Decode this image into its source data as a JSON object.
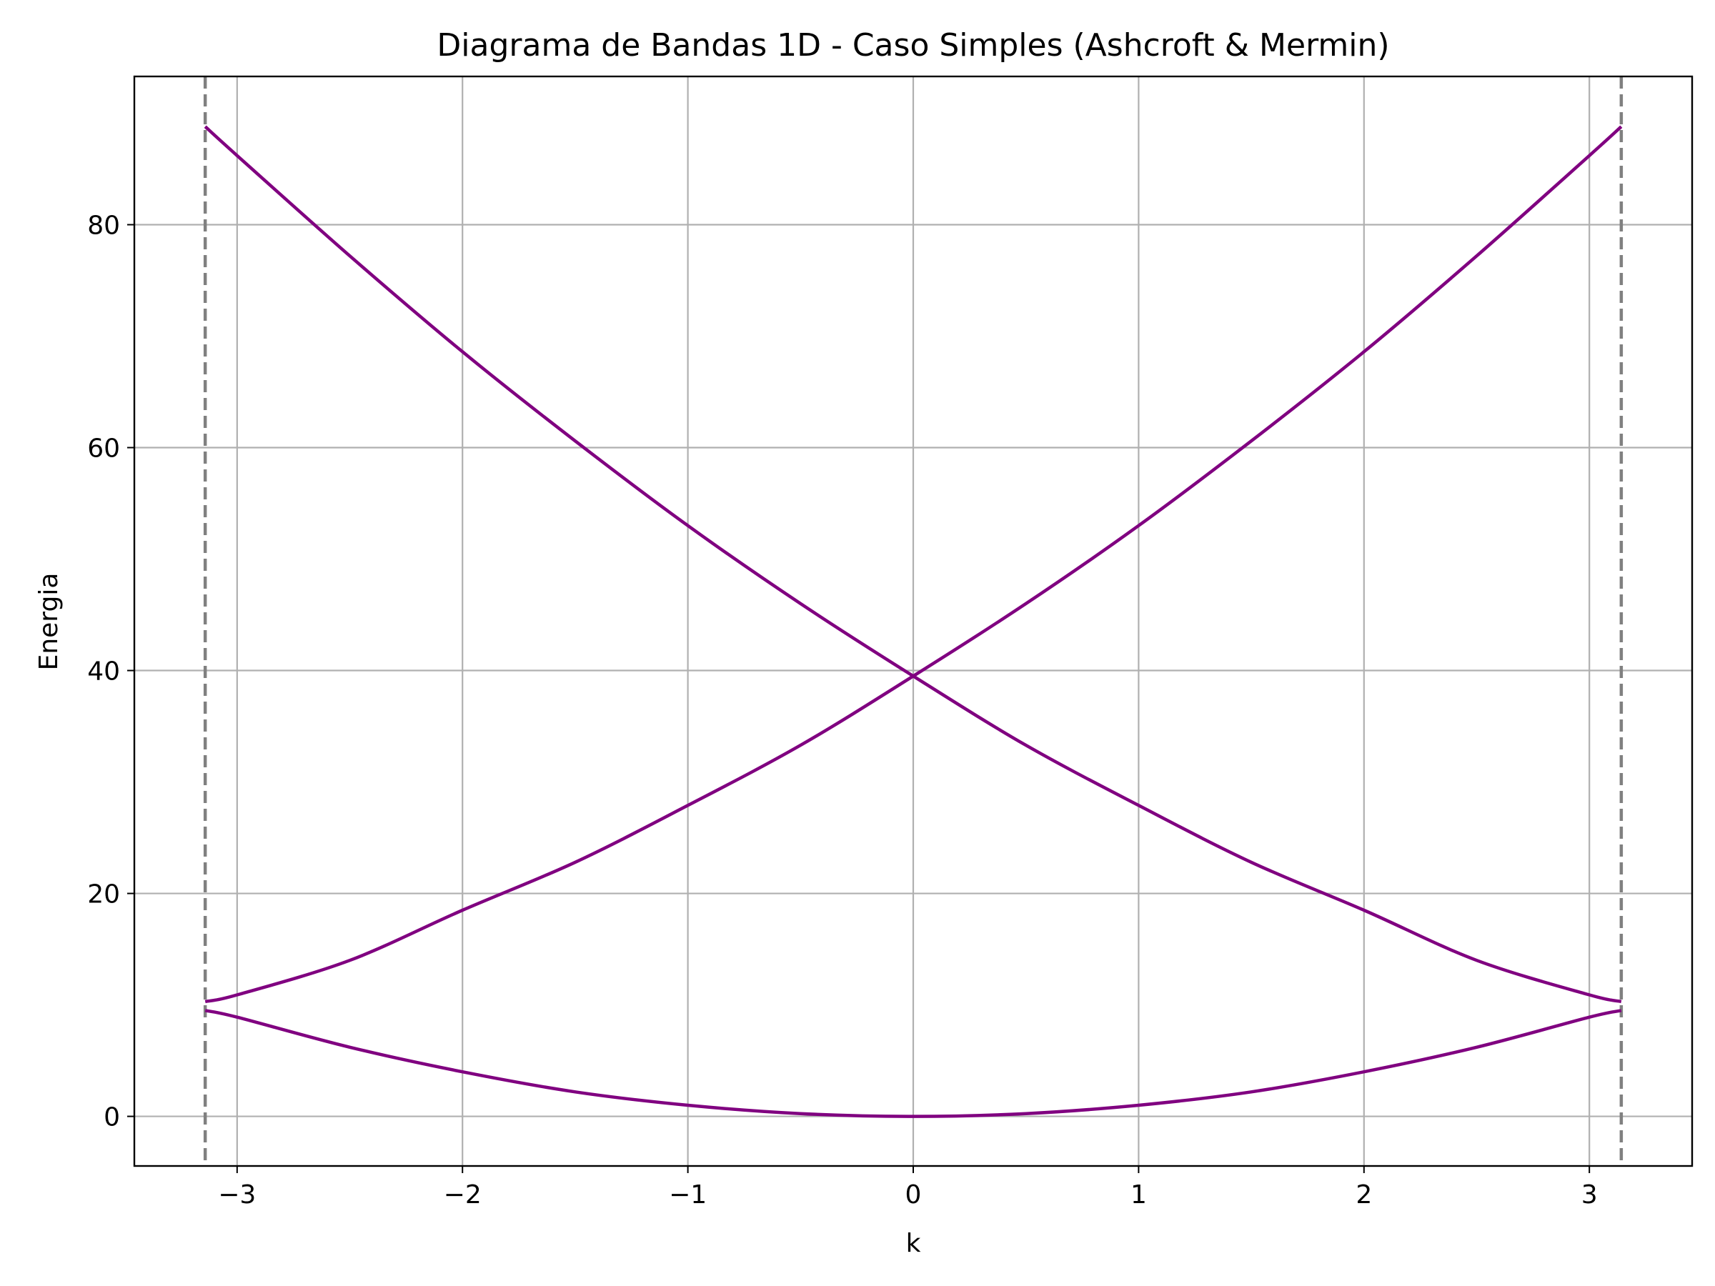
{
  "chart_data": {
    "type": "line",
    "title": "Diagrama de Bandas 1D - Caso Simples (Ashcroft & Mermin)",
    "xlabel": "k",
    "ylabel": "Energia",
    "xlim": [
      -3.456,
      3.456
    ],
    "ylim": [
      -4.45,
      93.3
    ],
    "xticks": [
      -3,
      -2,
      -1,
      0,
      1,
      2,
      3
    ],
    "xtick_labels": [
      "−3",
      "−2",
      "−1",
      "0",
      "1",
      "2",
      "3"
    ],
    "yticks": [
      0,
      20,
      40,
      60,
      80
    ],
    "ytick_labels": [
      "0",
      "20",
      "40",
      "60",
      "80"
    ],
    "grid": true,
    "line_color": "#800080",
    "boundary_color": "#808080",
    "zone_boundaries": [
      -3.1416,
      3.1416
    ],
    "series": [
      {
        "x": [
          -3.1416,
          -3.0,
          -2.5,
          -2.0,
          -1.5,
          -1.0,
          -0.5,
          0.0,
          0.5,
          1.0,
          1.5,
          2.0,
          2.5,
          3.0,
          3.1416
        ],
        "values": [
          9.5,
          8.9,
          6.2,
          4.0,
          2.2,
          1.0,
          0.25,
          0.0,
          0.25,
          1.0,
          2.2,
          4.0,
          6.2,
          8.9,
          9.5
        ]
      },
      {
        "x": [
          -3.1416,
          -3.0,
          -2.5,
          -2.0,
          -1.5,
          -1.0,
          -0.5,
          0.0,
          0.5,
          1.0,
          1.5,
          2.0,
          2.5,
          3.0,
          3.1416
        ],
        "values": [
          10.3,
          10.9,
          14.0,
          18.5,
          22.8,
          27.9,
          33.3,
          39.5,
          46.0,
          53.0,
          60.6,
          68.6,
          77.2,
          86.2,
          88.8
        ]
      },
      {
        "x": [
          -3.1416,
          -3.0,
          -2.5,
          -2.0,
          -1.5,
          -1.0,
          -0.5,
          0.0,
          0.5,
          1.0,
          1.5,
          2.0,
          2.5,
          3.0,
          3.1416
        ],
        "values": [
          88.8,
          86.2,
          77.2,
          68.6,
          60.6,
          53.0,
          46.0,
          39.5,
          33.3,
          27.9,
          22.8,
          18.5,
          14.0,
          10.9,
          10.3
        ]
      }
    ]
  }
}
